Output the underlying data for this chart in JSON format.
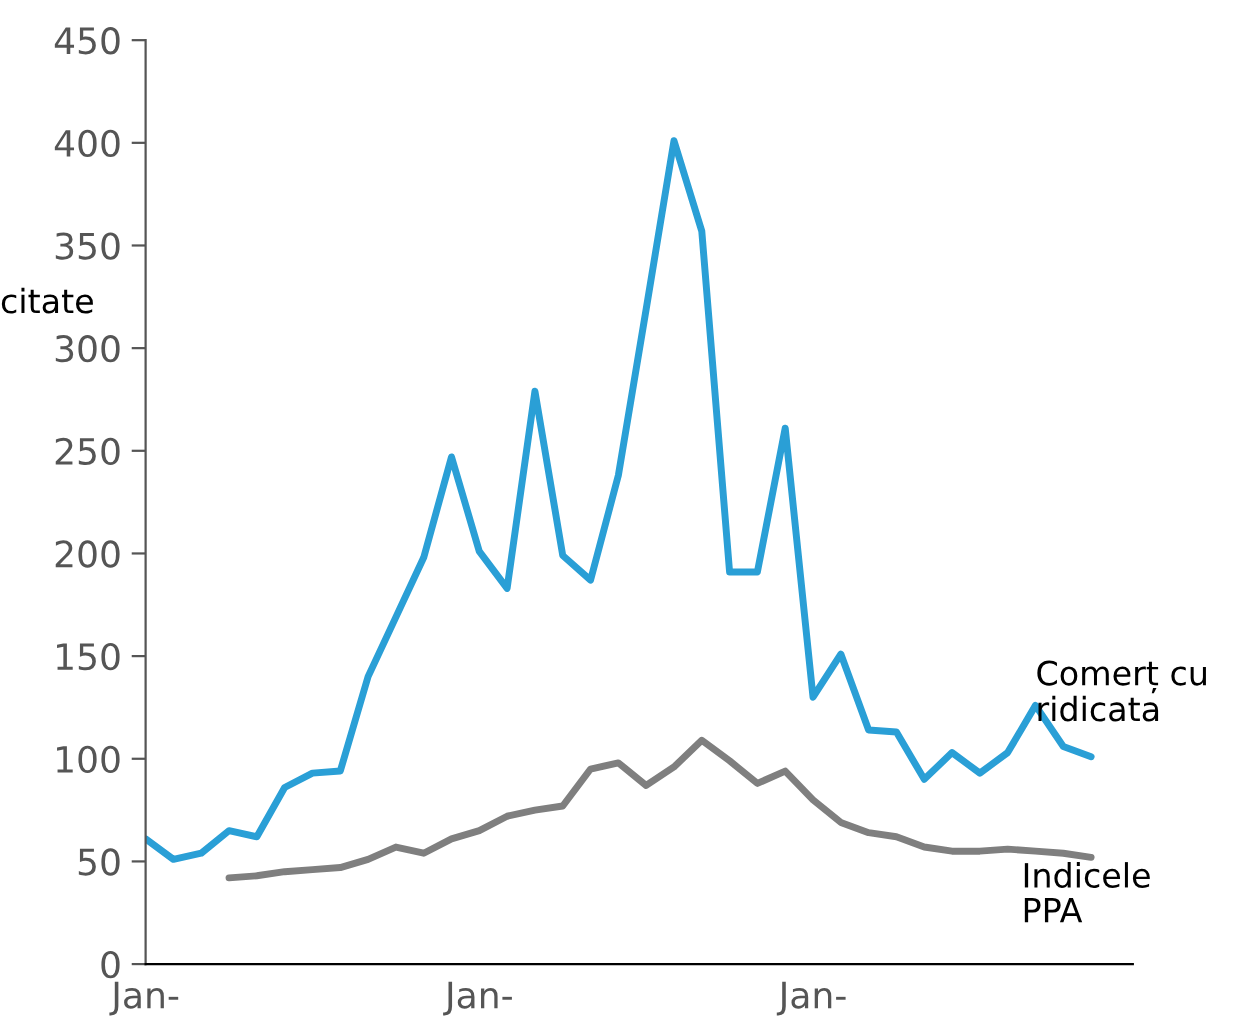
{
  "chart_data": {
    "type": "line",
    "ylabel": "citate",
    "categories": [
      "Jan-",
      null,
      null,
      null,
      null,
      null,
      null,
      null,
      null,
      null,
      null,
      null,
      "Jan-",
      null,
      null,
      null,
      null,
      null,
      null,
      null,
      null,
      null,
      null,
      null,
      "Jan-",
      null,
      null,
      null,
      null,
      null,
      null,
      null,
      null,
      null,
      null
    ],
    "series": [
      {
        "name": "Comerț cu\nridicata",
        "color": "#2a9fd6",
        "values": [
          61,
          51,
          54,
          65,
          62,
          86,
          93,
          94,
          140,
          169,
          198,
          247,
          201,
          183,
          279,
          199,
          187,
          238,
          319,
          401,
          357,
          191,
          191,
          261,
          130,
          151,
          114,
          113,
          90,
          103,
          93,
          103,
          126,
          106,
          101
        ]
      },
      {
        "name": "Indicele\nPPA",
        "color": "#7f7f7f",
        "values": [
          null,
          null,
          null,
          42,
          43,
          45,
          46,
          47,
          51,
          57,
          54,
          61,
          65,
          72,
          75,
          77,
          95,
          98,
          87,
          96,
          109,
          99,
          88,
          94,
          80,
          69,
          64,
          62,
          57,
          55,
          55,
          56,
          55,
          54,
          52
        ]
      }
    ],
    "ylim": [
      0,
      450
    ],
    "yticks": [
      0,
      50,
      100,
      150,
      200,
      250,
      300,
      350,
      400,
      450
    ],
    "grid": false,
    "legend": false,
    "line_style": "solid",
    "marker": "none"
  }
}
